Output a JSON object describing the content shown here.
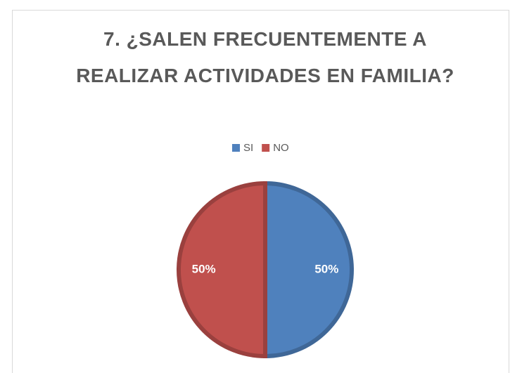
{
  "chart_data": {
    "type": "pie",
    "title": "7. ¿SALEN FRECUENTEMENTE A REALIZAR ACTIVIDADES EN FAMILIA?",
    "categories": [
      "SI",
      "NO"
    ],
    "values": [
      50,
      50
    ],
    "value_labels": [
      "50%",
      "50%"
    ],
    "colors": [
      "#4f81bd",
      "#c0504d"
    ],
    "legend": "top"
  }
}
